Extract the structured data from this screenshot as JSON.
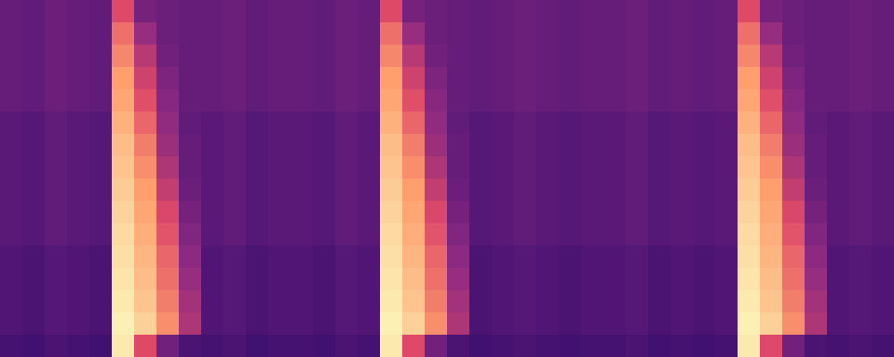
{
  "chart_data": {
    "type": "heatmap",
    "xlim": [
      0,
      40
    ],
    "ylim": [
      0,
      16
    ],
    "zlim": [
      0,
      1
    ],
    "tick_labels": false,
    "cells": [
      [
        0.33,
        0.32,
        0.34,
        0.33,
        0.32,
        0.55,
        0.36,
        0.34,
        0.33,
        0.33,
        0.34,
        0.32,
        0.33,
        0.33,
        0.32,
        0.34,
        0.33,
        0.55,
        0.36,
        0.34,
        0.33,
        0.32,
        0.33,
        0.34,
        0.33,
        0.32,
        0.33,
        0.33,
        0.34,
        0.32,
        0.33,
        0.32,
        0.33,
        0.55,
        0.36,
        0.34,
        0.33,
        0.33,
        0.34,
        0.33
      ],
      [
        0.33,
        0.32,
        0.34,
        0.33,
        0.32,
        0.62,
        0.42,
        0.34,
        0.33,
        0.33,
        0.34,
        0.32,
        0.33,
        0.33,
        0.32,
        0.34,
        0.33,
        0.62,
        0.42,
        0.34,
        0.33,
        0.32,
        0.33,
        0.34,
        0.33,
        0.32,
        0.33,
        0.33,
        0.34,
        0.32,
        0.33,
        0.32,
        0.33,
        0.62,
        0.42,
        0.34,
        0.33,
        0.33,
        0.34,
        0.33
      ],
      [
        0.33,
        0.32,
        0.34,
        0.33,
        0.32,
        0.66,
        0.48,
        0.35,
        0.33,
        0.33,
        0.34,
        0.32,
        0.33,
        0.33,
        0.32,
        0.34,
        0.33,
        0.66,
        0.48,
        0.35,
        0.33,
        0.32,
        0.33,
        0.34,
        0.33,
        0.32,
        0.33,
        0.33,
        0.34,
        0.32,
        0.33,
        0.32,
        0.33,
        0.66,
        0.48,
        0.35,
        0.33,
        0.33,
        0.34,
        0.33
      ],
      [
        0.33,
        0.32,
        0.34,
        0.33,
        0.32,
        0.7,
        0.52,
        0.37,
        0.33,
        0.33,
        0.34,
        0.32,
        0.33,
        0.33,
        0.32,
        0.34,
        0.33,
        0.7,
        0.52,
        0.37,
        0.33,
        0.32,
        0.33,
        0.34,
        0.33,
        0.32,
        0.33,
        0.33,
        0.34,
        0.32,
        0.33,
        0.32,
        0.33,
        0.7,
        0.52,
        0.37,
        0.33,
        0.33,
        0.34,
        0.33
      ],
      [
        0.33,
        0.32,
        0.34,
        0.33,
        0.32,
        0.72,
        0.56,
        0.39,
        0.33,
        0.33,
        0.34,
        0.32,
        0.33,
        0.33,
        0.32,
        0.34,
        0.33,
        0.72,
        0.56,
        0.39,
        0.33,
        0.32,
        0.33,
        0.34,
        0.33,
        0.32,
        0.33,
        0.33,
        0.34,
        0.32,
        0.33,
        0.32,
        0.33,
        0.72,
        0.56,
        0.39,
        0.33,
        0.33,
        0.34,
        0.33
      ],
      [
        0.31,
        0.3,
        0.32,
        0.31,
        0.3,
        0.75,
        0.6,
        0.41,
        0.32,
        0.31,
        0.32,
        0.3,
        0.31,
        0.31,
        0.3,
        0.32,
        0.31,
        0.75,
        0.6,
        0.41,
        0.32,
        0.3,
        0.31,
        0.32,
        0.31,
        0.3,
        0.31,
        0.31,
        0.32,
        0.3,
        0.31,
        0.3,
        0.31,
        0.75,
        0.6,
        0.41,
        0.32,
        0.31,
        0.32,
        0.31
      ],
      [
        0.31,
        0.3,
        0.32,
        0.31,
        0.3,
        0.78,
        0.64,
        0.43,
        0.33,
        0.31,
        0.32,
        0.3,
        0.31,
        0.31,
        0.3,
        0.32,
        0.31,
        0.78,
        0.64,
        0.43,
        0.33,
        0.3,
        0.31,
        0.32,
        0.31,
        0.3,
        0.31,
        0.31,
        0.32,
        0.3,
        0.31,
        0.3,
        0.31,
        0.78,
        0.64,
        0.43,
        0.33,
        0.31,
        0.32,
        0.31
      ],
      [
        0.31,
        0.3,
        0.32,
        0.31,
        0.3,
        0.8,
        0.67,
        0.46,
        0.33,
        0.31,
        0.32,
        0.3,
        0.31,
        0.31,
        0.3,
        0.32,
        0.31,
        0.8,
        0.67,
        0.46,
        0.33,
        0.3,
        0.31,
        0.32,
        0.31,
        0.3,
        0.31,
        0.31,
        0.32,
        0.3,
        0.31,
        0.3,
        0.31,
        0.8,
        0.67,
        0.46,
        0.33,
        0.31,
        0.32,
        0.31
      ],
      [
        0.31,
        0.3,
        0.32,
        0.31,
        0.3,
        0.82,
        0.7,
        0.5,
        0.34,
        0.31,
        0.32,
        0.3,
        0.31,
        0.31,
        0.3,
        0.32,
        0.31,
        0.82,
        0.7,
        0.5,
        0.34,
        0.3,
        0.31,
        0.32,
        0.31,
        0.3,
        0.31,
        0.31,
        0.32,
        0.3,
        0.31,
        0.3,
        0.31,
        0.82,
        0.7,
        0.5,
        0.34,
        0.31,
        0.32,
        0.31
      ],
      [
        0.31,
        0.3,
        0.32,
        0.31,
        0.3,
        0.84,
        0.72,
        0.54,
        0.36,
        0.31,
        0.32,
        0.3,
        0.31,
        0.31,
        0.3,
        0.32,
        0.31,
        0.84,
        0.72,
        0.54,
        0.36,
        0.3,
        0.31,
        0.32,
        0.31,
        0.3,
        0.31,
        0.31,
        0.32,
        0.3,
        0.31,
        0.3,
        0.31,
        0.84,
        0.72,
        0.54,
        0.36,
        0.31,
        0.32,
        0.31
      ],
      [
        0.31,
        0.3,
        0.32,
        0.31,
        0.3,
        0.86,
        0.74,
        0.57,
        0.38,
        0.31,
        0.32,
        0.3,
        0.31,
        0.31,
        0.3,
        0.32,
        0.31,
        0.86,
        0.74,
        0.57,
        0.38,
        0.3,
        0.31,
        0.32,
        0.31,
        0.3,
        0.31,
        0.31,
        0.32,
        0.3,
        0.31,
        0.3,
        0.31,
        0.86,
        0.74,
        0.57,
        0.38,
        0.31,
        0.32,
        0.31
      ],
      [
        0.29,
        0.28,
        0.3,
        0.29,
        0.28,
        0.88,
        0.76,
        0.6,
        0.4,
        0.29,
        0.3,
        0.28,
        0.29,
        0.29,
        0.28,
        0.3,
        0.29,
        0.88,
        0.76,
        0.6,
        0.4,
        0.28,
        0.29,
        0.3,
        0.29,
        0.28,
        0.29,
        0.29,
        0.3,
        0.28,
        0.29,
        0.28,
        0.29,
        0.88,
        0.76,
        0.6,
        0.4,
        0.29,
        0.3,
        0.29
      ],
      [
        0.29,
        0.28,
        0.3,
        0.29,
        0.28,
        0.9,
        0.78,
        0.62,
        0.42,
        0.29,
        0.3,
        0.28,
        0.29,
        0.29,
        0.28,
        0.3,
        0.29,
        0.9,
        0.78,
        0.62,
        0.42,
        0.28,
        0.29,
        0.3,
        0.29,
        0.28,
        0.29,
        0.29,
        0.3,
        0.28,
        0.29,
        0.28,
        0.29,
        0.9,
        0.78,
        0.62,
        0.42,
        0.29,
        0.3,
        0.29
      ],
      [
        0.29,
        0.28,
        0.3,
        0.29,
        0.28,
        0.92,
        0.8,
        0.64,
        0.44,
        0.29,
        0.3,
        0.28,
        0.29,
        0.29,
        0.28,
        0.3,
        0.29,
        0.92,
        0.8,
        0.64,
        0.44,
        0.28,
        0.29,
        0.3,
        0.29,
        0.28,
        0.29,
        0.29,
        0.3,
        0.28,
        0.29,
        0.28,
        0.29,
        0.92,
        0.8,
        0.64,
        0.44,
        0.29,
        0.3,
        0.29
      ],
      [
        0.29,
        0.28,
        0.3,
        0.29,
        0.28,
        0.95,
        0.83,
        0.67,
        0.46,
        0.29,
        0.3,
        0.28,
        0.29,
        0.29,
        0.28,
        0.3,
        0.29,
        0.95,
        0.83,
        0.67,
        0.46,
        0.28,
        0.29,
        0.3,
        0.29,
        0.28,
        0.29,
        0.29,
        0.3,
        0.28,
        0.29,
        0.28,
        0.29,
        0.95,
        0.83,
        0.67,
        0.46,
        0.29,
        0.3,
        0.29
      ],
      [
        0.27,
        0.26,
        0.28,
        0.27,
        0.26,
        0.92,
        0.55,
        0.35,
        0.28,
        0.27,
        0.28,
        0.26,
        0.27,
        0.27,
        0.26,
        0.28,
        0.27,
        0.92,
        0.55,
        0.35,
        0.28,
        0.26,
        0.27,
        0.28,
        0.27,
        0.26,
        0.27,
        0.27,
        0.28,
        0.26,
        0.27,
        0.26,
        0.27,
        0.92,
        0.55,
        0.35,
        0.28,
        0.27,
        0.28,
        0.27
      ]
    ]
  }
}
